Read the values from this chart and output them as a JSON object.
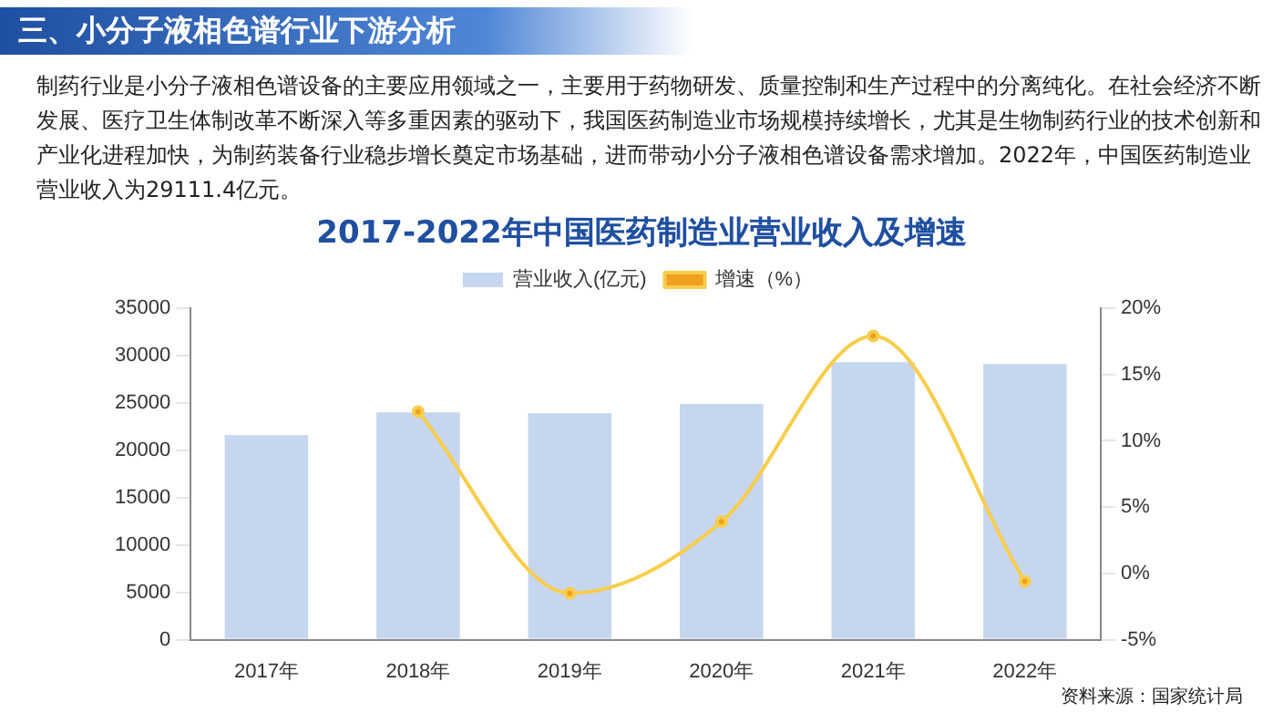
{
  "chart_data": {
    "type": "bar",
    "title": "2017-2022年中国医药制造业营业收入及增速",
    "annotations": [
      "三、小分子液相色谱行业下游分析",
      "制药行业是小分子液相色谱设备的主要应用领域之一，主要用于药物研发、质量控制和生产过程中的分离纯化。在社会经济不断发展、医疗卫生体制改革不断深入等多重因素的驱动下，我国医药制造业市场规模持续增长，尤其是生物制药行业的技术创新和产业化进程加快，为制药装备行业稳步增长奠定市场基础，进而带动小分子液相色谱设备需求增加。2022年，中国医药制造业营业收入为29111.4亿元。",
      "资料来源：国家统计局"
    ],
    "categories": [
      "2017年",
      "2018年",
      "2019年",
      "2020年",
      "2021年",
      "2022年"
    ],
    "series": [
      {
        "name": "营业收入(亿元)",
        "color": "#c6d6ef",
        "values": [
          21600,
          24000,
          23900,
          24900,
          29300,
          29100
        ]
      },
      {
        "name": "增速（%）",
        "type": "line",
        "axis": "y2",
        "color": "#f7cd4a",
        "values": [
          null,
          12.2,
          -1.5,
          3.9,
          17.9,
          -0.6
        ]
      }
    ],
    "ylim": [
      0,
      35000
    ],
    "yticks": [
      0,
      5000,
      10000,
      15000,
      20000,
      25000,
      30000,
      35000
    ],
    "y2lim": [
      -5,
      20
    ],
    "y2ticks": [
      {
        "value": -5,
        "label": "-5%"
      },
      {
        "value": 0,
        "label": "0%"
      },
      {
        "value": 5,
        "label": "5%"
      },
      {
        "value": 10,
        "label": "10%"
      },
      {
        "value": 15,
        "label": "15%"
      },
      {
        "value": 20,
        "label": "20%"
      }
    ],
    "legend": "top",
    "grid": false,
    "marker": "circle"
  }
}
